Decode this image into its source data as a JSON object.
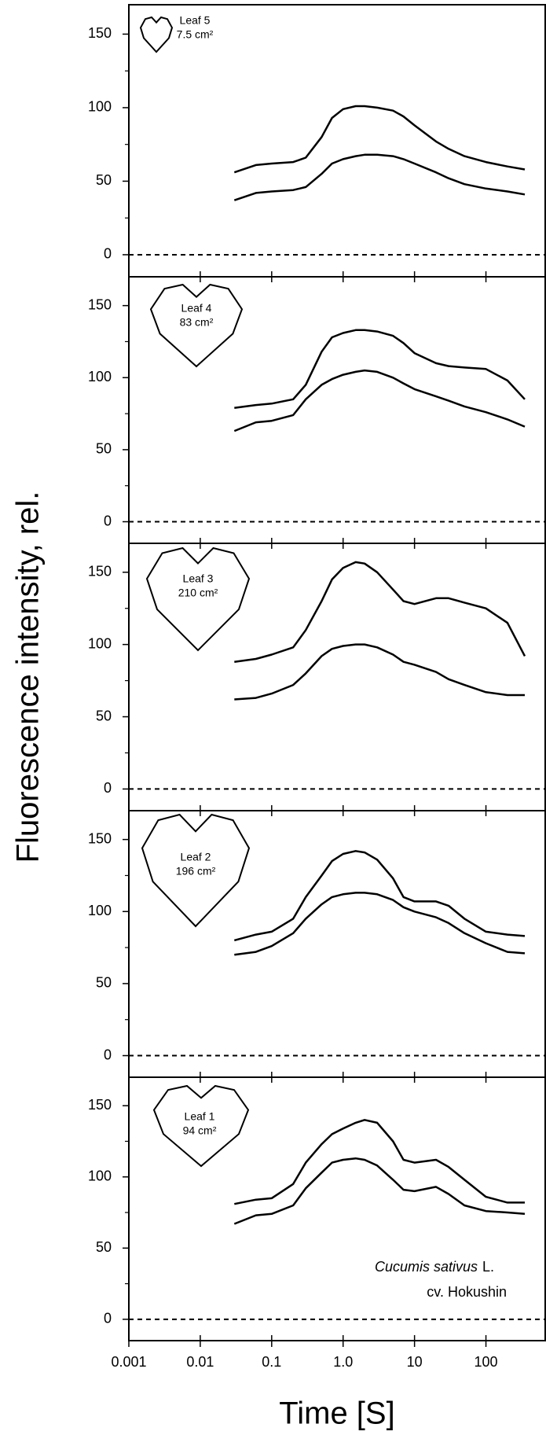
{
  "ylabel": "Fluorescence intensity, rel.",
  "xlabel": "Time [S]",
  "species": "Cucumis sativus",
  "authority": "L.",
  "cultivar": "cv. Hokushin",
  "chart_data": [
    {
      "type": "line",
      "leaf": "Leaf 5",
      "area": "7.5 cm²",
      "xscale": "log",
      "xlim": [
        0.001,
        676
      ],
      "ylim": [
        -15,
        170
      ],
      "yticks": [
        0,
        50,
        100,
        150
      ],
      "x": [
        0.03,
        0.06,
        0.1,
        0.2,
        0.3,
        0.5,
        0.7,
        1,
        1.5,
        2,
        3,
        5,
        7,
        10,
        20,
        30,
        50,
        100,
        200,
        350
      ],
      "series": [
        {
          "color": "#000000",
          "values": [
            56,
            61,
            62,
            63,
            66,
            80,
            93,
            99,
            101,
            101,
            100,
            98,
            94,
            88,
            77,
            72,
            67,
            63,
            60,
            58
          ]
        },
        {
          "color": "#000000",
          "values": [
            37,
            42,
            43,
            44,
            46,
            55,
            62,
            65,
            67,
            68,
            68,
            67,
            65,
            62,
            56,
            52,
            48,
            45,
            43,
            41
          ]
        }
      ]
    },
    {
      "type": "line",
      "leaf": "Leaf 4",
      "area": "83 cm²",
      "xscale": "log",
      "xlim": [
        0.001,
        676
      ],
      "ylim": [
        -15,
        170
      ],
      "yticks": [
        0,
        50,
        100,
        150
      ],
      "x": [
        0.03,
        0.06,
        0.1,
        0.2,
        0.3,
        0.5,
        0.7,
        1,
        1.5,
        2,
        3,
        5,
        7,
        10,
        20,
        30,
        50,
        100,
        200,
        350
      ],
      "series": [
        {
          "color": "#000000",
          "values": [
            79,
            81,
            82,
            85,
            95,
            118,
            128,
            131,
            133,
            133,
            132,
            129,
            124,
            117,
            110,
            108,
            107,
            106,
            98,
            85
          ]
        },
        {
          "color": "#000000",
          "values": [
            63,
            69,
            70,
            74,
            85,
            95,
            99,
            102,
            104,
            105,
            104,
            100,
            96,
            92,
            87,
            84,
            80,
            76,
            71,
            66
          ]
        }
      ]
    },
    {
      "type": "line",
      "leaf": "Leaf 3",
      "area": "210 cm²",
      "xscale": "log",
      "xlim": [
        0.001,
        676
      ],
      "ylim": [
        -15,
        170
      ],
      "yticks": [
        0,
        50,
        100,
        150
      ],
      "x": [
        0.03,
        0.06,
        0.1,
        0.2,
        0.3,
        0.5,
        0.7,
        1,
        1.5,
        2,
        3,
        5,
        7,
        10,
        20,
        30,
        50,
        100,
        200,
        350
      ],
      "series": [
        {
          "color": "#000000",
          "values": [
            88,
            90,
            93,
            98,
            110,
            130,
            145,
            153,
            157,
            156,
            150,
            138,
            130,
            128,
            132,
            132,
            129,
            125,
            115,
            92
          ]
        },
        {
          "color": "#000000",
          "values": [
            62,
            63,
            66,
            72,
            80,
            92,
            97,
            99,
            100,
            100,
            98,
            93,
            88,
            86,
            81,
            76,
            72,
            67,
            65,
            65
          ]
        }
      ]
    },
    {
      "type": "line",
      "leaf": "Leaf 2",
      "area": "196 cm²",
      "xscale": "log",
      "xlim": [
        0.001,
        676
      ],
      "ylim": [
        -15,
        170
      ],
      "yticks": [
        0,
        50,
        100,
        150
      ],
      "x": [
        0.03,
        0.06,
        0.1,
        0.2,
        0.3,
        0.5,
        0.7,
        1,
        1.5,
        2,
        3,
        5,
        7,
        10,
        20,
        30,
        50,
        100,
        200,
        350
      ],
      "series": [
        {
          "color": "#000000",
          "values": [
            80,
            84,
            86,
            95,
            110,
            125,
            135,
            140,
            142,
            141,
            136,
            123,
            110,
            107,
            107,
            104,
            95,
            86,
            84,
            83
          ]
        },
        {
          "color": "#000000",
          "values": [
            70,
            72,
            76,
            85,
            95,
            105,
            110,
            112,
            113,
            113,
            112,
            108,
            103,
            100,
            96,
            92,
            85,
            78,
            72,
            71
          ]
        }
      ]
    },
    {
      "type": "line",
      "leaf": "Leaf 1",
      "area": "94 cm²",
      "xscale": "log",
      "xlim": [
        0.001,
        676
      ],
      "ylim": [
        -15,
        170
      ],
      "yticks": [
        0,
        50,
        100,
        150
      ],
      "xticks": [
        0.001,
        0.01,
        0.1,
        {
          "value": 1,
          "label": "1.0"
        },
        10,
        100
      ],
      "x": [
        0.03,
        0.06,
        0.1,
        0.2,
        0.3,
        0.5,
        0.7,
        1,
        1.5,
        2,
        3,
        5,
        7,
        10,
        20,
        30,
        50,
        100,
        200,
        350
      ],
      "series": [
        {
          "color": "#000000",
          "values": [
            81,
            84,
            85,
            95,
            110,
            123,
            130,
            134,
            138,
            140,
            138,
            125,
            112,
            110,
            112,
            107,
            98,
            86,
            82,
            82
          ]
        },
        {
          "color": "#000000",
          "values": [
            67,
            73,
            74,
            80,
            92,
            103,
            110,
            112,
            113,
            112,
            108,
            98,
            91,
            90,
            93,
            88,
            80,
            76,
            75,
            74
          ]
        }
      ]
    }
  ]
}
